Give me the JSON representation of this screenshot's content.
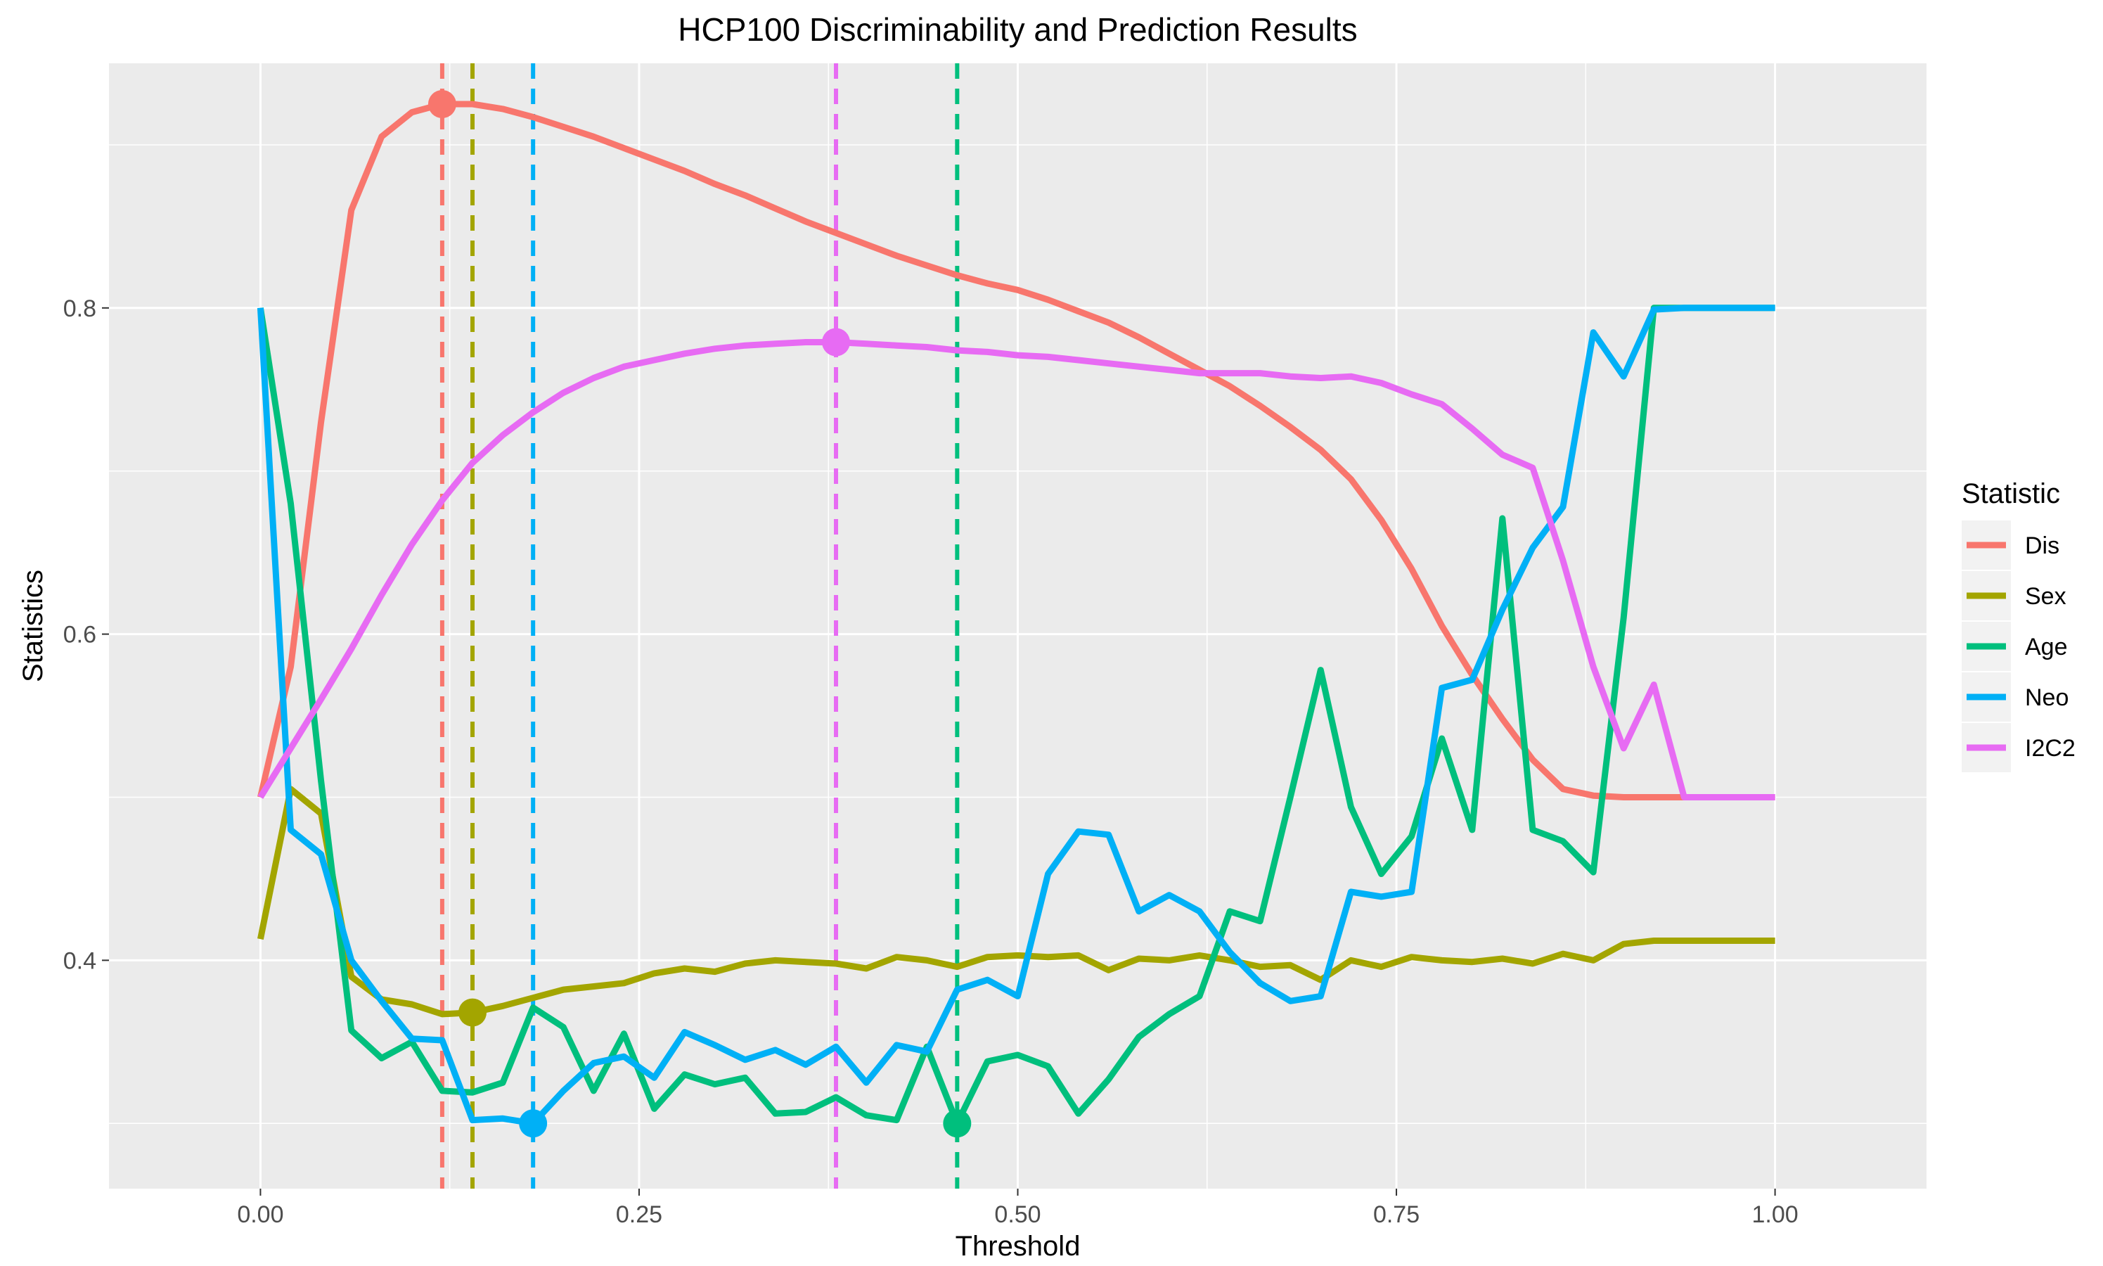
{
  "chart_data": {
    "type": "line",
    "title": "HCP100 Discriminability and Prediction Results",
    "xlabel": "Threshold",
    "ylabel": "Statistics",
    "xlim": [
      -0.1,
      1.1
    ],
    "ylim": [
      0.26,
      0.95
    ],
    "x_ticks": [
      0.0,
      0.25,
      0.5,
      0.75,
      1.0
    ],
    "x_tick_labels": [
      "0.00",
      "0.25",
      "0.50",
      "0.75",
      "1.00"
    ],
    "y_ticks": [
      0.4,
      0.6,
      0.8
    ],
    "y_tick_labels": [
      "0.4",
      "0.6",
      "0.8"
    ],
    "grid": true,
    "legend": {
      "title": "Statistic",
      "placement": "right"
    },
    "x": [
      0.0,
      0.02,
      0.04,
      0.06,
      0.08,
      0.1,
      0.12,
      0.14,
      0.16,
      0.18,
      0.2,
      0.22,
      0.24,
      0.26,
      0.28,
      0.3,
      0.32,
      0.34,
      0.36,
      0.38,
      0.4,
      0.42,
      0.44,
      0.46,
      0.48,
      0.5,
      0.52,
      0.54,
      0.56,
      0.58,
      0.6,
      0.62,
      0.64,
      0.66,
      0.68,
      0.7,
      0.72,
      0.74,
      0.76,
      0.78,
      0.8,
      0.82,
      0.84,
      0.86,
      0.88,
      0.9,
      0.92,
      0.94,
      0.96,
      0.98,
      1.0
    ],
    "series": [
      {
        "name": "Dis",
        "color": "#F8766D",
        "values": [
          0.5,
          0.58,
          0.73,
          0.86,
          0.905,
          0.92,
          0.925,
          0.925,
          0.922,
          0.917,
          0.911,
          0.905,
          0.898,
          0.891,
          0.884,
          0.876,
          0.869,
          0.861,
          0.853,
          0.846,
          0.839,
          0.832,
          0.826,
          0.82,
          0.815,
          0.811,
          0.805,
          0.798,
          0.791,
          0.782,
          0.772,
          0.762,
          0.752,
          0.74,
          0.727,
          0.713,
          0.695,
          0.67,
          0.64,
          0.605,
          0.575,
          0.548,
          0.523,
          0.505,
          0.501,
          0.5,
          0.5,
          0.5,
          0.5,
          0.5,
          0.5
        ],
        "optimum": {
          "x": 0.12,
          "y": 0.925
        }
      },
      {
        "name": "Sex",
        "color": "#A3A500",
        "values": [
          0.413,
          0.505,
          0.49,
          0.39,
          0.376,
          0.373,
          0.367,
          0.368,
          0.372,
          0.377,
          0.382,
          0.384,
          0.386,
          0.392,
          0.395,
          0.393,
          0.398,
          0.4,
          0.399,
          0.398,
          0.395,
          0.402,
          0.4,
          0.396,
          0.402,
          0.403,
          0.402,
          0.403,
          0.394,
          0.401,
          0.4,
          0.403,
          0.4,
          0.396,
          0.397,
          0.388,
          0.4,
          0.396,
          0.402,
          0.4,
          0.399,
          0.401,
          0.398,
          0.404,
          0.4,
          0.41,
          0.412,
          0.412,
          0.412,
          0.412,
          0.412
        ],
        "optimum": {
          "x": 0.14,
          "y": 0.368
        }
      },
      {
        "name": "Age",
        "color": "#00BF7D",
        "values": [
          0.8,
          0.68,
          0.51,
          0.357,
          0.34,
          0.35,
          0.32,
          0.319,
          0.325,
          0.371,
          0.359,
          0.32,
          0.355,
          0.309,
          0.33,
          0.324,
          0.328,
          0.306,
          0.307,
          0.316,
          0.305,
          0.302,
          0.347,
          0.3,
          0.338,
          0.342,
          0.335,
          0.306,
          0.327,
          0.353,
          0.367,
          0.378,
          0.43,
          0.424,
          0.5,
          0.578,
          0.494,
          0.453,
          0.476,
          0.536,
          0.48,
          0.671,
          0.48,
          0.473,
          0.454,
          0.61,
          0.8,
          0.8,
          0.8,
          0.8,
          0.8
        ],
        "optimum": {
          "x": 0.46,
          "y": 0.3
        }
      },
      {
        "name": "Neo",
        "color": "#00B0F6",
        "values": [
          0.8,
          0.48,
          0.465,
          0.4,
          0.375,
          0.352,
          0.351,
          0.302,
          0.303,
          0.3,
          0.32,
          0.337,
          0.341,
          0.328,
          0.356,
          0.348,
          0.339,
          0.345,
          0.336,
          0.347,
          0.325,
          0.348,
          0.344,
          0.382,
          0.388,
          0.378,
          0.453,
          0.479,
          0.477,
          0.43,
          0.44,
          0.43,
          0.405,
          0.386,
          0.375,
          0.378,
          0.442,
          0.439,
          0.442,
          0.567,
          0.572,
          0.615,
          0.653,
          0.678,
          0.785,
          0.758,
          0.799,
          0.8,
          0.8,
          0.8,
          0.8
        ],
        "optimum": {
          "x": 0.18,
          "y": 0.3
        }
      },
      {
        "name": "I2C2",
        "color": "#E76BF3",
        "values": [
          0.5,
          0.53,
          0.56,
          0.591,
          0.624,
          0.655,
          0.682,
          0.705,
          0.722,
          0.736,
          0.748,
          0.757,
          0.764,
          0.768,
          0.772,
          0.775,
          0.777,
          0.778,
          0.779,
          0.779,
          0.778,
          0.777,
          0.776,
          0.774,
          0.773,
          0.771,
          0.77,
          0.768,
          0.766,
          0.764,
          0.762,
          0.76,
          0.76,
          0.76,
          0.758,
          0.757,
          0.758,
          0.754,
          0.747,
          0.741,
          0.726,
          0.71,
          0.702,
          0.645,
          0.58,
          0.53,
          0.569,
          0.5,
          0.5,
          0.5,
          0.5
        ],
        "optimum": {
          "x": 0.38,
          "y": 0.779
        }
      }
    ]
  }
}
